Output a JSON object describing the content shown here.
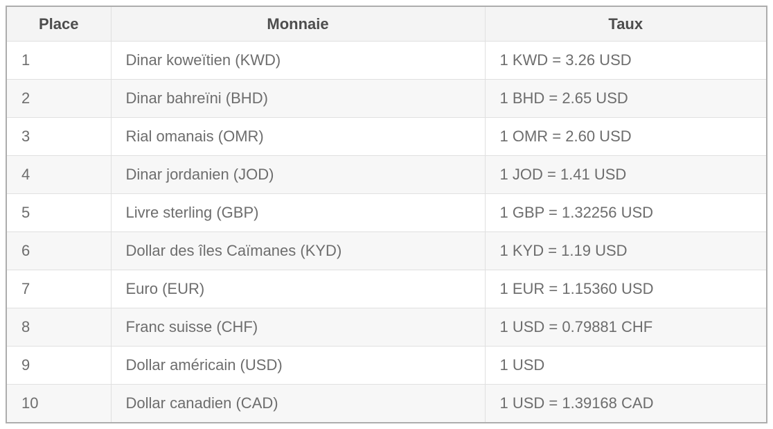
{
  "chart_data": {
    "type": "table",
    "columns": [
      "Place",
      "Monnaie",
      "Taux"
    ],
    "rows": [
      [
        "1",
        "Dinar koweïtien (KWD)",
        "1 KWD = 3.26 USD"
      ],
      [
        "2",
        "Dinar bahreïni (BHD)",
        "1 BHD = 2.65 USD"
      ],
      [
        "3",
        "Rial omanais (OMR)",
        "1 OMR = 2.60 USD"
      ],
      [
        "4",
        "Dinar jordanien (JOD)",
        "1 JOD = 1.41 USD"
      ],
      [
        "5",
        "Livre sterling (GBP)",
        "1 GBP = 1.32256 USD"
      ],
      [
        "6",
        "Dollar des îles Caïmanes (KYD)",
        "1 KYD = 1.19 USD"
      ],
      [
        "7",
        "Euro (EUR)",
        "1 EUR = 1.15360 USD"
      ],
      [
        "8",
        "Franc suisse (CHF)",
        "1 USD = 0.79881 CHF"
      ],
      [
        "9",
        "Dollar américain (USD)",
        "1 USD"
      ],
      [
        "10",
        "Dollar canadien (CAD)",
        "1 USD = 1.39168 CAD"
      ]
    ]
  },
  "colors": {
    "outer_border": "#adadad",
    "inner_border": "#e0e0e0",
    "header_background": "#f4f4f4",
    "stripe_background": "#f7f7f7",
    "header_text": "#4d4d4d",
    "body_text": "#6d6d6d"
  }
}
